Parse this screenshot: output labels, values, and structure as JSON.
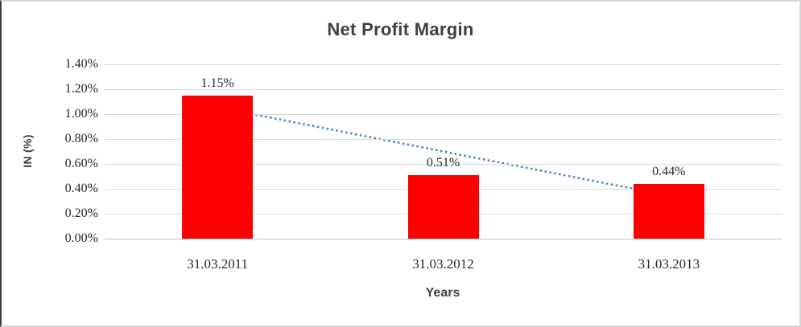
{
  "chart_data": {
    "type": "bar",
    "title": "Net Profit Margin",
    "xlabel": "Years",
    "ylabel": "IN (%)",
    "categories": [
      "31.03.2011",
      "31.03.2012",
      "31.03.2013"
    ],
    "values": [
      1.15,
      0.51,
      0.44
    ],
    "data_labels": [
      "1.15%",
      "0.51%",
      "0.44%"
    ],
    "ytick_labels": [
      "0.00%",
      "0.20%",
      "0.40%",
      "0.60%",
      "0.80%",
      "1.00%",
      "1.20%",
      "1.40%"
    ],
    "ylim": [
      0,
      1.4
    ],
    "grid": true,
    "legend": false,
    "bar_color": "#ff0000",
    "trendline": {
      "type": "linear",
      "style": "dotted",
      "color": "#4a86c8"
    }
  }
}
